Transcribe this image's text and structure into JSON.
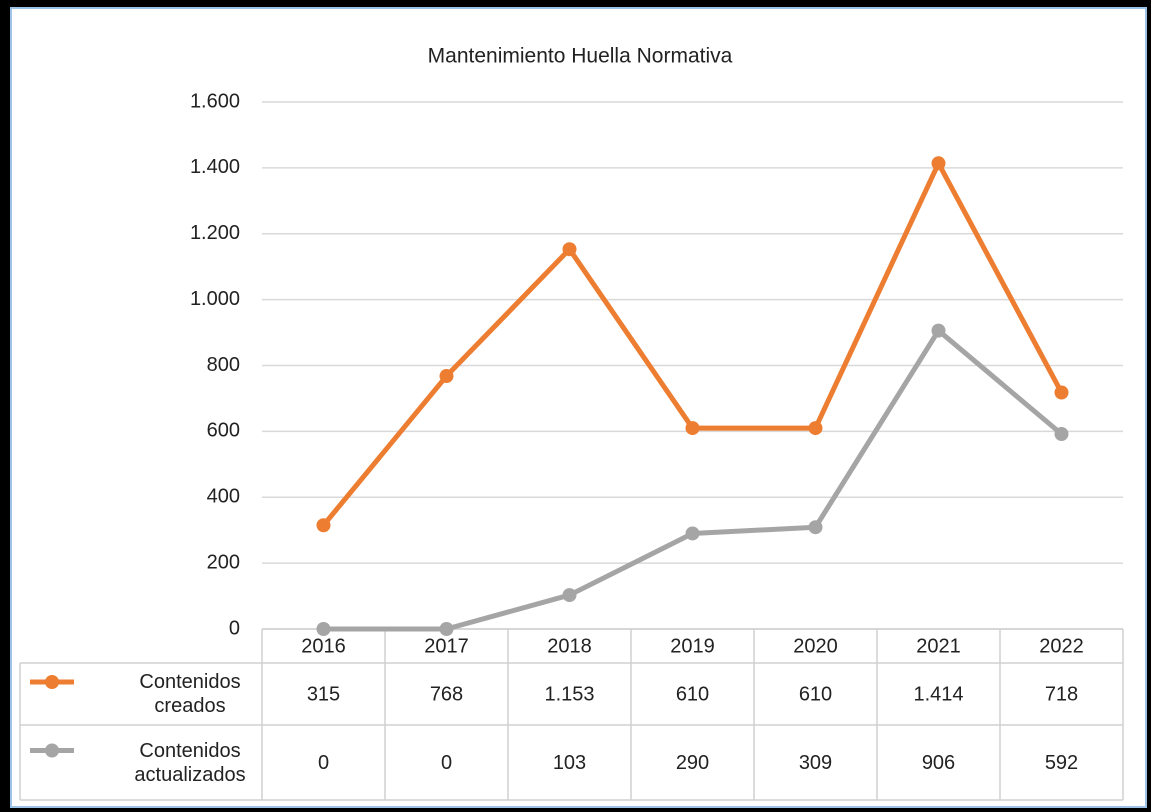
{
  "chart_data": {
    "type": "line",
    "title": "Mantenimiento Huella Normativa",
    "categories": [
      "2016",
      "2017",
      "2018",
      "2019",
      "2020",
      "2021",
      "2022"
    ],
    "series": [
      {
        "name": "Contenidos creados",
        "color": "#ed7d31",
        "values": [
          315,
          768,
          1153,
          610,
          610,
          1414,
          718
        ],
        "value_labels": [
          "315",
          "768",
          "1.153",
          "610",
          "610",
          "1.414",
          "718"
        ]
      },
      {
        "name": "Contenidos actualizados",
        "color": "#a5a5a5",
        "values": [
          0,
          0,
          103,
          290,
          309,
          906,
          592
        ],
        "value_labels": [
          "0",
          "0",
          "103",
          "290",
          "309",
          "906",
          "592"
        ]
      }
    ],
    "ylim": [
      0,
      1600
    ],
    "yticks": [
      0,
      200,
      400,
      600,
      800,
      {
        "value": 1000,
        "label": "1.000"
      },
      {
        "value": 1200,
        "label": "1.200"
      },
      {
        "value": 1400,
        "label": "1.400"
      },
      {
        "value": 1600,
        "label": "1.600"
      }
    ],
    "grid": true
  }
}
